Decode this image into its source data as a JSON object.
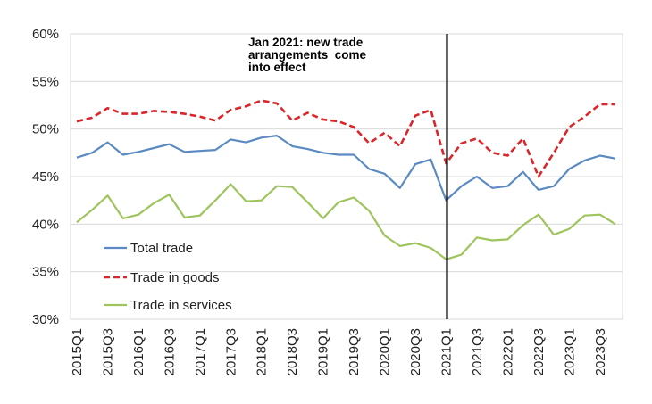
{
  "chart_data": {
    "type": "line",
    "title": "",
    "xlabel": "",
    "ylabel": "",
    "ylim": [
      30,
      60
    ],
    "ytick_values": [
      30,
      35,
      40,
      45,
      50,
      55,
      60
    ],
    "ytick_labels": [
      "30%",
      "35%",
      "40%",
      "45%",
      "50%",
      "55%",
      "60%"
    ],
    "x": [
      "2015Q1",
      "2015Q2",
      "2015Q3",
      "2015Q4",
      "2016Q1",
      "2016Q2",
      "2016Q3",
      "2016Q4",
      "2017Q1",
      "2017Q2",
      "2017Q3",
      "2017Q4",
      "2018Q1",
      "2018Q2",
      "2018Q3",
      "2018Q4",
      "2019Q1",
      "2019Q2",
      "2019Q3",
      "2019Q4",
      "2020Q1",
      "2020Q2",
      "2020Q3",
      "2020Q4",
      "2021Q1",
      "2021Q2",
      "2021Q3",
      "2021Q4",
      "2022Q1",
      "2022Q2",
      "2022Q3",
      "2022Q4",
      "2023Q1",
      "2023Q2",
      "2023Q3",
      "2023Q4"
    ],
    "xtick_labels": [
      "2015Q1",
      "2015Q3",
      "2016Q1",
      "2016Q3",
      "2017Q1",
      "2017Q3",
      "2018Q1",
      "2018Q3",
      "2019Q1",
      "2019Q3",
      "2020Q1",
      "2020Q3",
      "2021Q1",
      "2021Q3",
      "2022Q1",
      "2022Q3",
      "2023Q1",
      "2023Q3"
    ],
    "grid": "horizontal",
    "legend_position": "bottom-left",
    "series": [
      {
        "name": "Total trade",
        "color": "#5b8ac2",
        "style": "solid",
        "values": [
          47.0,
          47.5,
          48.6,
          47.3,
          47.6,
          48.0,
          48.4,
          47.6,
          47.7,
          47.8,
          48.9,
          48.6,
          49.1,
          49.3,
          48.2,
          47.9,
          47.5,
          47.3,
          47.3,
          45.8,
          45.3,
          43.8,
          46.3,
          46.8,
          42.5,
          44.0,
          45.0,
          43.8,
          44.0,
          45.5,
          43.6,
          44.0,
          45.8,
          46.7,
          47.2,
          46.9
        ]
      },
      {
        "name": "Trade in goods",
        "color": "#d9262b",
        "style": "dashed",
        "values": [
          50.8,
          51.2,
          52.2,
          51.6,
          51.6,
          51.9,
          51.8,
          51.6,
          51.3,
          50.9,
          52.0,
          52.4,
          53.0,
          52.7,
          50.9,
          51.7,
          51.0,
          50.8,
          50.2,
          48.5,
          49.6,
          48.2,
          51.4,
          52.0,
          46.4,
          48.5,
          49.0,
          47.5,
          47.2,
          49.0,
          45.0,
          47.5,
          50.2,
          51.3,
          52.6,
          52.6
        ]
      },
      {
        "name": "Trade in services",
        "color": "#9ec45c",
        "style": "solid",
        "values": [
          40.2,
          41.5,
          43.0,
          40.6,
          41.0,
          42.2,
          43.1,
          40.7,
          40.9,
          42.5,
          44.2,
          42.4,
          42.5,
          44.0,
          43.9,
          42.3,
          40.6,
          42.3,
          42.8,
          41.4,
          38.8,
          37.7,
          38.0,
          37.5,
          36.3,
          36.8,
          38.6,
          38.3,
          38.4,
          39.9,
          41.0,
          38.9,
          39.5,
          40.9,
          41.0,
          40.0
        ]
      }
    ],
    "annotation": {
      "at": "2021Q1",
      "lines": [
        "Jan 2021: new trade",
        "arrangements  come",
        "into effect"
      ]
    }
  }
}
